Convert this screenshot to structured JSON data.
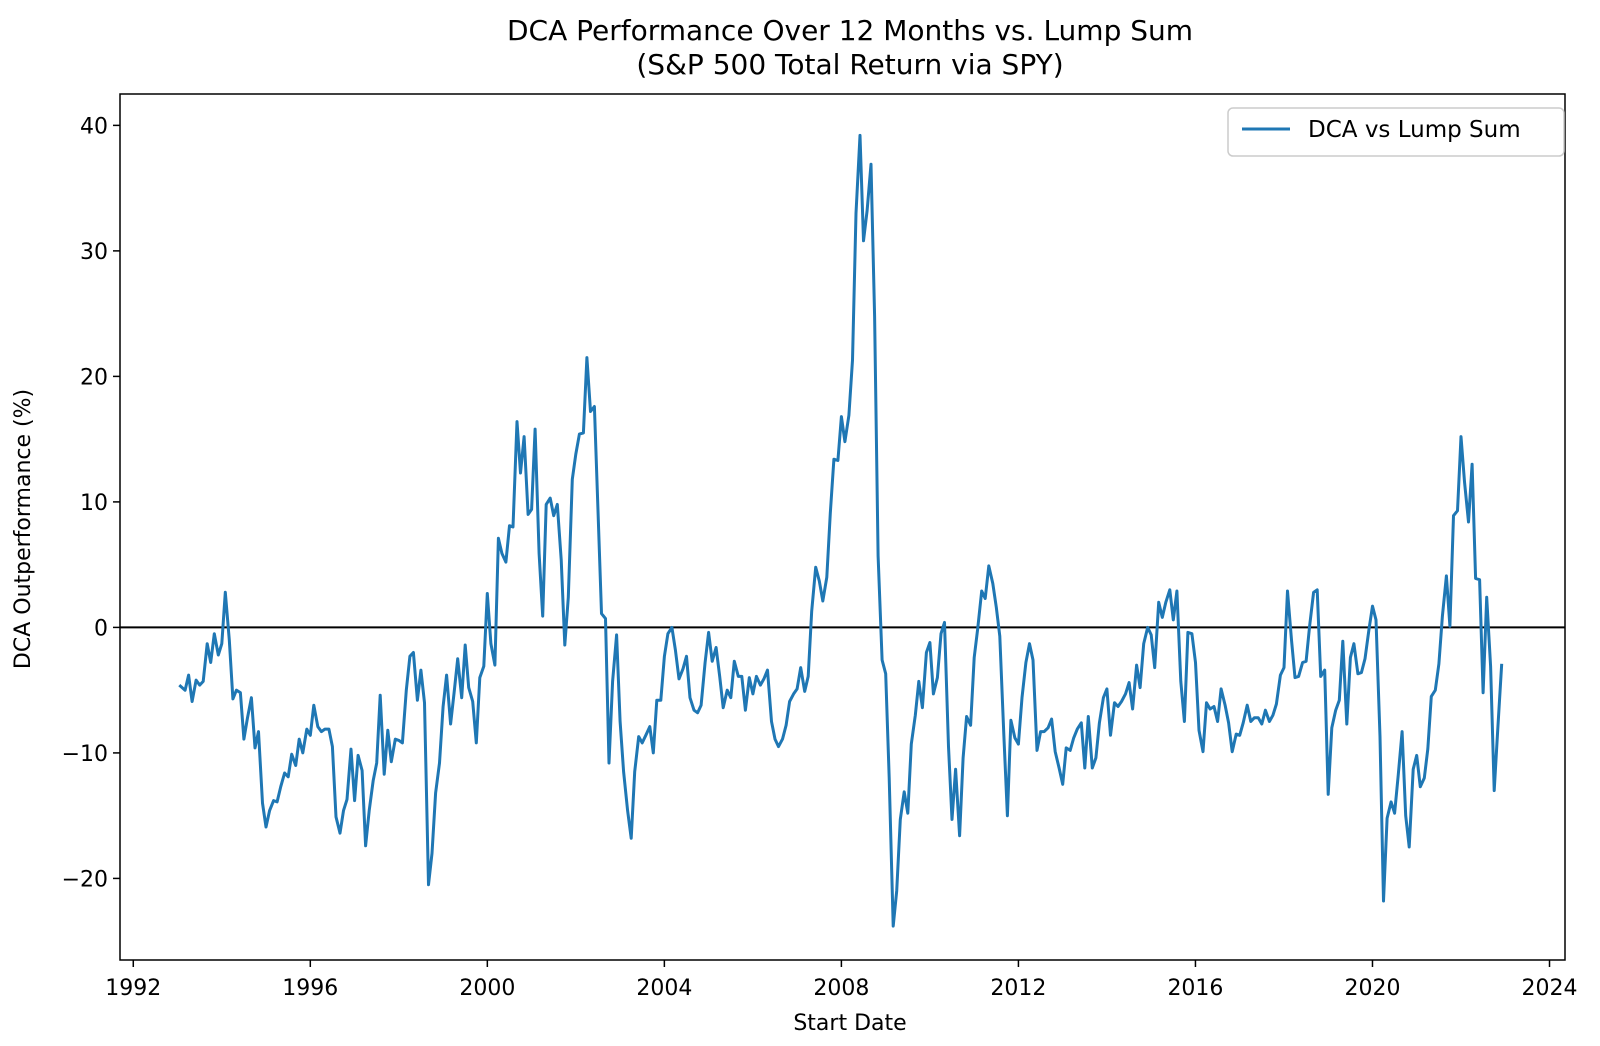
{
  "chart_data": {
    "type": "line",
    "title": "DCA Performance Over 12 Months vs. Lump Sum",
    "subtitle": "(S&P 500 Total Return via SPY)",
    "xlabel": "Start Date",
    "ylabel": "DCA Outperformance (%)",
    "xlim": [
      1991.7,
      2024.35
    ],
    "ylim": [
      -26.5,
      42.5
    ],
    "x_ticks": [
      1992,
      1996,
      2000,
      2004,
      2008,
      2012,
      2016,
      2020,
      2024
    ],
    "y_ticks": [
      -20,
      -10,
      0,
      10,
      20,
      30,
      40
    ],
    "y_tick_labels": [
      "−20",
      "−10",
      "0",
      "10",
      "20",
      "30",
      "40"
    ],
    "reference_line_y": 0,
    "legend": {
      "position": "top-right",
      "entries": [
        "DCA vs Lump Sum"
      ]
    },
    "colors": {
      "series": "#1f77b4",
      "reference": "#000000"
    },
    "grid": false,
    "series": [
      {
        "name": "DCA vs Lump Sum",
        "x": [
          1993.04,
          1993.17,
          1993.25,
          1993.33,
          1993.42,
          1993.5,
          1993.58,
          1993.67,
          1993.75,
          1993.83,
          1993.92,
          1994.0,
          1994.08,
          1994.17,
          1994.25,
          1994.33,
          1994.42,
          1994.5,
          1994.58,
          1994.67,
          1994.75,
          1994.83,
          1994.92,
          1995.0,
          1995.08,
          1995.17,
          1995.25,
          1995.33,
          1995.42,
          1995.5,
          1995.58,
          1995.67,
          1995.75,
          1995.83,
          1995.92,
          1996.0,
          1996.08,
          1996.17,
          1996.25,
          1996.33,
          1996.42,
          1996.5,
          1996.58,
          1996.67,
          1996.75,
          1996.83,
          1996.92,
          1997.0,
          1997.08,
          1997.17,
          1997.25,
          1997.33,
          1997.42,
          1997.5,
          1997.58,
          1997.67,
          1997.75,
          1997.83,
          1997.92,
          1998.0,
          1998.08,
          1998.17,
          1998.25,
          1998.33,
          1998.42,
          1998.5,
          1998.58,
          1998.67,
          1998.75,
          1998.83,
          1998.92,
          1999.0,
          1999.08,
          1999.17,
          1999.25,
          1999.33,
          1999.42,
          1999.5,
          1999.58,
          1999.67,
          1999.75,
          1999.83,
          1999.92,
          2000.0,
          2000.08,
          2000.17,
          2000.25,
          2000.33,
          2000.42,
          2000.5,
          2000.58,
          2000.67,
          2000.75,
          2000.83,
          2000.92,
          2001.0,
          2001.08,
          2001.17,
          2001.25,
          2001.33,
          2001.42,
          2001.5,
          2001.58,
          2001.67,
          2001.75,
          2001.83,
          2001.92,
          2002.0,
          2002.08,
          2002.17,
          2002.25,
          2002.33,
          2002.42,
          2002.5,
          2002.58,
          2002.67,
          2002.75,
          2002.83,
          2002.92,
          2003.0,
          2003.08,
          2003.17,
          2003.25,
          2003.33,
          2003.42,
          2003.5,
          2003.58,
          2003.67,
          2003.75,
          2003.83,
          2003.92,
          2004.0,
          2004.08,
          2004.17,
          2004.25,
          2004.33,
          2004.42,
          2004.5,
          2004.58,
          2004.67,
          2004.75,
          2004.83,
          2004.92,
          2005.0,
          2005.08,
          2005.17,
          2005.25,
          2005.33,
          2005.42,
          2005.5,
          2005.58,
          2005.67,
          2005.75,
          2005.83,
          2005.92,
          2006.0,
          2006.08,
          2006.17,
          2006.25,
          2006.33,
          2006.42,
          2006.5,
          2006.58,
          2006.67,
          2006.75,
          2006.83,
          2006.92,
          2007.0,
          2007.08,
          2007.17,
          2007.25,
          2007.33,
          2007.42,
          2007.5,
          2007.58,
          2007.67,
          2007.75,
          2007.83,
          2007.92,
          2008.0,
          2008.08,
          2008.17,
          2008.25,
          2008.33,
          2008.42,
          2008.5,
          2008.58,
          2008.67,
          2008.75,
          2008.83,
          2008.92,
          2009.0,
          2009.08,
          2009.17,
          2009.25,
          2009.33,
          2009.42,
          2009.5,
          2009.58,
          2009.67,
          2009.75,
          2009.83,
          2009.92,
          2010.0,
          2010.08,
          2010.17,
          2010.25,
          2010.33,
          2010.42,
          2010.5,
          2010.58,
          2010.67,
          2010.75,
          2010.83,
          2010.92,
          2011.0,
          2011.08,
          2011.17,
          2011.25,
          2011.33,
          2011.42,
          2011.5,
          2011.58,
          2011.67,
          2011.75,
          2011.83,
          2011.92,
          2012.0,
          2012.08,
          2012.17,
          2012.25,
          2012.33,
          2012.42,
          2012.5,
          2012.58,
          2012.67,
          2012.75,
          2012.83,
          2012.92,
          2013.0,
          2013.08,
          2013.17,
          2013.25,
          2013.33,
          2013.42,
          2013.5,
          2013.58,
          2013.67,
          2013.75,
          2013.83,
          2013.92,
          2014.0,
          2014.08,
          2014.17,
          2014.25,
          2014.33,
          2014.42,
          2014.5,
          2014.58,
          2014.67,
          2014.75,
          2014.83,
          2014.92,
          2015.0,
          2015.08,
          2015.17,
          2015.25,
          2015.33,
          2015.42,
          2015.5,
          2015.58,
          2015.67,
          2015.75,
          2015.83,
          2015.92,
          2016.0,
          2016.08,
          2016.17,
          2016.25,
          2016.33,
          2016.42,
          2016.5,
          2016.58,
          2016.67,
          2016.75,
          2016.83,
          2016.92,
          2017.0,
          2017.08,
          2017.17,
          2017.25,
          2017.33,
          2017.42,
          2017.5,
          2017.58,
          2017.67,
          2017.75,
          2017.83,
          2017.92,
          2018.0,
          2018.08,
          2018.17,
          2018.25,
          2018.33,
          2018.42,
          2018.5,
          2018.58,
          2018.67,
          2018.75,
          2018.83,
          2018.92,
          2019.0,
          2019.08,
          2019.17,
          2019.25,
          2019.33,
          2019.42,
          2019.5,
          2019.58,
          2019.67,
          2019.75,
          2019.83,
          2019.92,
          2020.0,
          2020.08,
          2020.17,
          2020.25,
          2020.33,
          2020.42,
          2020.5,
          2020.58,
          2020.67,
          2020.75,
          2020.83,
          2020.92,
          2021.0,
          2021.08,
          2021.17,
          2021.25,
          2021.33,
          2021.42,
          2021.5,
          2021.58,
          2021.67,
          2021.75,
          2021.83,
          2021.92,
          2022.0,
          2022.08,
          2022.17,
          2022.25,
          2022.33,
          2022.42,
          2022.5,
          2022.58,
          2022.67,
          2022.75,
          2022.83,
          2022.92
        ],
        "values": [
          -4.6,
          -5.0,
          -3.8,
          -5.9,
          -4.2,
          -4.6,
          -4.3,
          -1.3,
          -2.8,
          -0.5,
          -2.2,
          -1.3,
          2.8,
          -1.0,
          -5.7,
          -5.0,
          -5.2,
          -8.9,
          -7.2,
          -5.6,
          -9.6,
          -8.3,
          -14.0,
          -15.9,
          -14.6,
          -13.8,
          -13.9,
          -12.7,
          -11.6,
          -11.9,
          -10.1,
          -11.0,
          -8.9,
          -10.0,
          -8.1,
          -8.6,
          -6.2,
          -7.9,
          -8.3,
          -8.1,
          -8.1,
          -9.5,
          -15.1,
          -16.4,
          -14.6,
          -13.7,
          -9.7,
          -13.8,
          -10.2,
          -11.4,
          -17.4,
          -14.6,
          -12.2,
          -10.8,
          -5.4,
          -11.7,
          -8.2,
          -10.7,
          -8.9,
          -9.0,
          -9.2,
          -5.0,
          -2.3,
          -2.0,
          -5.8,
          -3.4,
          -6.0,
          -20.5,
          -18.0,
          -13.2,
          -10.8,
          -6.3,
          -3.8,
          -7.7,
          -5.2,
          -2.5,
          -5.6,
          -1.4,
          -4.8,
          -5.9,
          -9.2,
          -4.0,
          -3.1,
          2.7,
          -1.3,
          -3.0,
          7.1,
          5.9,
          5.2,
          8.1,
          8.0,
          16.4,
          12.3,
          15.2,
          9.0,
          9.4,
          15.8,
          5.9,
          0.9,
          9.8,
          10.3,
          8.9,
          9.8,
          5.4,
          -1.4,
          2.4,
          11.8,
          13.8,
          15.4,
          15.5,
          21.5,
          17.2,
          17.6,
          9.3,
          1.1,
          0.7,
          -10.8,
          -4.3,
          -0.6,
          -7.5,
          -11.5,
          -14.6,
          -16.8,
          -11.5,
          -8.7,
          -9.2,
          -8.6,
          -7.9,
          -10.0,
          -5.8,
          -5.8,
          -2.3,
          -0.5,
          0.0,
          -1.8,
          -4.1,
          -3.3,
          -2.3,
          -5.6,
          -6.6,
          -6.8,
          -6.2,
          -2.8,
          -0.4,
          -2.7,
          -1.6,
          -3.9,
          -6.4,
          -5.0,
          -5.6,
          -2.7,
          -3.9,
          -3.9,
          -6.6,
          -4.0,
          -5.3,
          -3.9,
          -4.6,
          -4.1,
          -3.4,
          -7.5,
          -8.9,
          -9.5,
          -8.9,
          -7.8,
          -5.9,
          -5.3,
          -4.9,
          -3.2,
          -5.1,
          -3.9,
          1.3,
          4.8,
          3.7,
          2.1,
          4.0,
          9.1,
          13.4,
          13.3,
          16.8,
          14.8,
          16.9,
          21.3,
          33.0,
          39.2,
          30.8,
          33.2,
          36.9,
          24.8,
          5.7,
          -2.6,
          -3.7,
          -12.0,
          -23.8,
          -21.0,
          -15.3,
          -13.1,
          -14.8,
          -9.3,
          -7.0,
          -4.3,
          -6.4,
          -2.0,
          -1.2,
          -5.3,
          -4.0,
          -0.5,
          0.4,
          -9.5,
          -15.3,
          -11.3,
          -16.6,
          -10.4,
          -7.1,
          -7.8,
          -2.4,
          -0.1,
          2.9,
          2.3,
          4.9,
          3.5,
          1.6,
          -0.7,
          -8.5,
          -15.0,
          -7.4,
          -8.8,
          -9.3,
          -5.6,
          -2.8,
          -1.3,
          -2.6,
          -9.8,
          -8.3,
          -8.3,
          -8.0,
          -7.3,
          -9.9,
          -11.2,
          -12.5,
          -9.6,
          -9.8,
          -8.8,
          -8.1,
          -7.6,
          -11.2,
          -7.1,
          -11.2,
          -10.4,
          -7.6,
          -5.6,
          -4.9,
          -8.6,
          -6.0,
          -6.3,
          -5.9,
          -5.3,
          -4.4,
          -6.5,
          -3.0,
          -4.8,
          -1.3,
          0.0,
          -0.6,
          -3.2,
          2.0,
          0.8,
          2.0,
          3.0,
          0.6,
          2.9,
          -4.3,
          -7.5,
          -0.4,
          -0.5,
          -2.8,
          -8.2,
          -9.9,
          -6.0,
          -6.5,
          -6.3,
          -7.5,
          -4.9,
          -6.2,
          -7.6,
          -9.9,
          -8.5,
          -8.6,
          -7.6,
          -6.2,
          -7.5,
          -7.2,
          -7.2,
          -7.7,
          -6.6,
          -7.5,
          -7.0,
          -6.1,
          -3.8,
          -3.2,
          2.9,
          -1.0,
          -4.0,
          -3.9,
          -2.8,
          -2.7,
          0.1,
          2.8,
          3.0,
          -3.9,
          -3.4,
          -13.3,
          -8.0,
          -6.6,
          -5.8,
          -1.1,
          -7.7,
          -2.4,
          -1.3,
          -3.7,
          -3.6,
          -2.5,
          -0.2,
          1.7,
          0.6,
          -8.7,
          -21.8,
          -15.2,
          -13.9,
          -14.8,
          -11.8,
          -8.3,
          -15.0,
          -17.5,
          -11.3,
          -10.2,
          -12.7,
          -12.0,
          -9.7,
          -5.5,
          -5.0,
          -2.9,
          0.9,
          4.1,
          0.1,
          8.9,
          9.3,
          15.2,
          11.6,
          8.4,
          13.0,
          3.9,
          3.8,
          -5.2,
          2.4,
          -3.1,
          -13.0,
          -8.2,
          -2.9
        ]
      }
    ]
  }
}
